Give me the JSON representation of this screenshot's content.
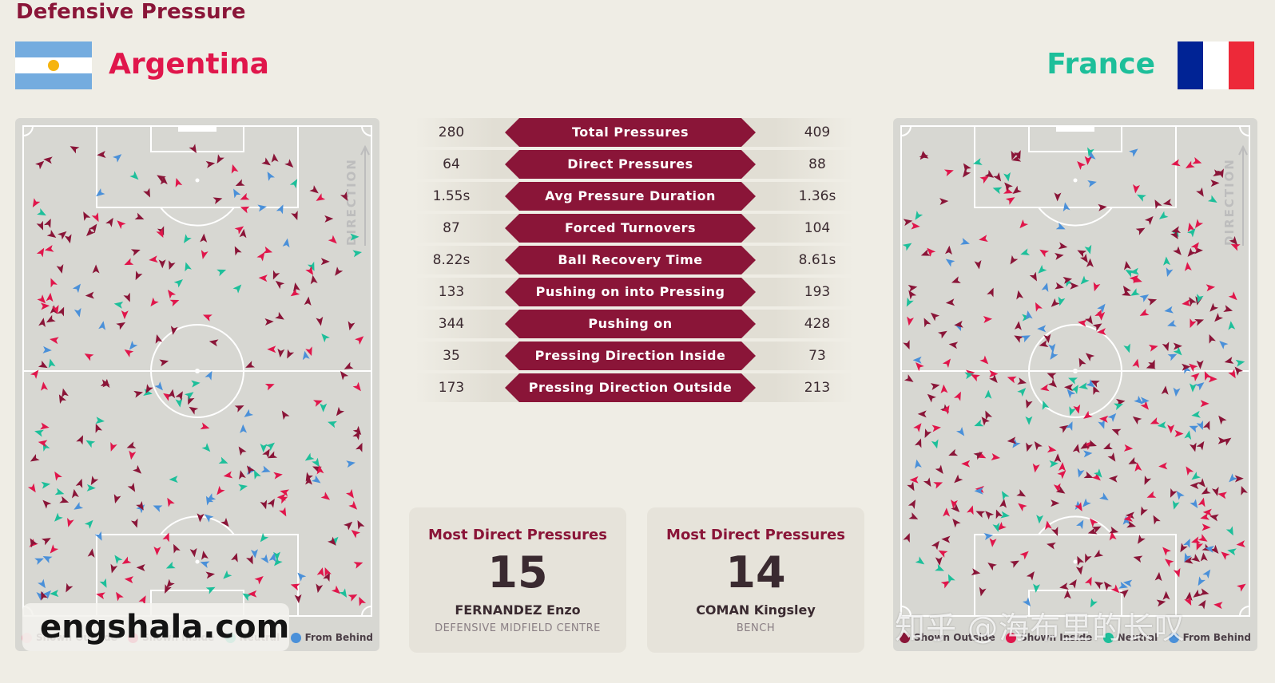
{
  "title": "Defensive Pressure",
  "teams": {
    "left": {
      "name": "Argentina",
      "color": "#e0164b"
    },
    "right": {
      "name": "France",
      "color": "#1dbf9a"
    }
  },
  "flag_colors": {
    "argentina": [
      "#74acdf",
      "#ffffff",
      "#74acdf"
    ],
    "argentina_sun": "#f6b40e",
    "france": [
      "#002395",
      "#ffffff",
      "#ed2939"
    ]
  },
  "pitch": {
    "direction_label": "DIRECTION"
  },
  "legend": [
    {
      "label": "Shown Outside",
      "color": "#8a1538"
    },
    {
      "label": "Shown Inside",
      "color": "#e0164b"
    },
    {
      "label": "Neutral",
      "color": "#1dbf9a"
    },
    {
      "label": "From Behind",
      "color": "#4a90d9"
    }
  ],
  "chart_data": {
    "type": "table",
    "stats": [
      {
        "label": "Total Pressures",
        "left": "280",
        "right": "409"
      },
      {
        "label": "Direct Pressures",
        "left": "64",
        "right": "88"
      },
      {
        "label": "Avg Pressure Duration",
        "left": "1.55s",
        "right": "1.36s"
      },
      {
        "label": "Forced Turnovers",
        "left": "87",
        "right": "104"
      },
      {
        "label": "Ball Recovery Time",
        "left": "8.22s",
        "right": "8.61s"
      },
      {
        "label": "Pushing on into Pressing",
        "left": "133",
        "right": "193"
      },
      {
        "label": "Pushing on",
        "left": "344",
        "right": "428"
      },
      {
        "label": "Pressing Direction Inside",
        "left": "35",
        "right": "73"
      },
      {
        "label": "Pressing Direction Outside",
        "left": "173",
        "right": "213"
      }
    ]
  },
  "cards": {
    "left": {
      "title": "Most Direct Pressures",
      "value": "15",
      "name": "FERNANDEZ Enzo",
      "position": "DEFENSIVE MIDFIELD CENTRE"
    },
    "right": {
      "title": "Most Direct Pressures",
      "value": "14",
      "name": "COMAN Kingsley",
      "position": "BENCH"
    }
  },
  "watermarks": {
    "left": "engshala.com",
    "right": "知乎 @海布里的长叹"
  }
}
